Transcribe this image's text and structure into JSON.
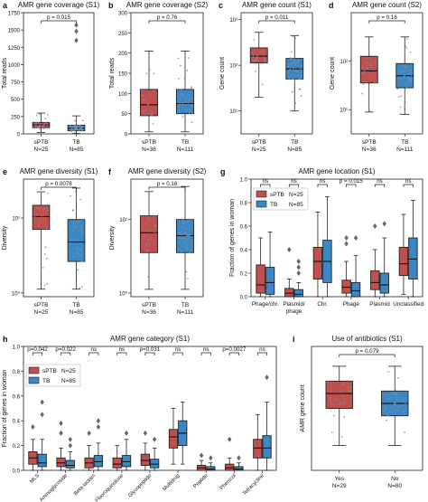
{
  "colors": {
    "sptb": "#c0504d",
    "tb": "#3b87c4",
    "box_edge": "#222222",
    "dot": "#7a8fa6",
    "median": "#111111"
  },
  "chart_data": [
    {
      "id": "a",
      "panel_letter": "a",
      "type": "box",
      "title": "AMR gene coverage (S1)",
      "ylabel": "Total reads",
      "scale": "linear",
      "ylim": [
        0,
        1750
      ],
      "yticks": [
        0,
        250,
        500,
        750,
        1000,
        1250,
        1500,
        1750
      ],
      "ytick_labels": [
        "0",
        "250",
        "500",
        "750",
        "1000",
        "1250",
        "1500",
        "1750"
      ],
      "categories": [
        "sPTB",
        "TB"
      ],
      "ns": [
        "N=25",
        "N=85"
      ],
      "boxes": [
        {
          "q1": 90,
          "median": 130,
          "q3": 165,
          "lo": 20,
          "hi": 300,
          "outliers": [],
          "color": "sptb"
        },
        {
          "q1": 45,
          "median": 80,
          "q3": 125,
          "lo": 5,
          "hi": 260,
          "outliers": [
            1350,
            1480,
            1570
          ],
          "color": "tb"
        }
      ],
      "comparisons": [
        {
          "label": "p = 0.015",
          "a": 0,
          "b": 1
        }
      ]
    },
    {
      "id": "b",
      "panel_letter": "b",
      "type": "box",
      "title": "AMR gene coverage (S2)",
      "ylabel": "Total reads",
      "scale": "linear",
      "ylim": [
        0,
        300
      ],
      "yticks": [
        0,
        50,
        100,
        150,
        200,
        250,
        300
      ],
      "ytick_labels": [
        "0",
        "50",
        "100",
        "150",
        "200",
        "250",
        "300"
      ],
      "categories": [
        "sPTB",
        "TB"
      ],
      "ns": [
        "N=36",
        "N=111"
      ],
      "boxes": [
        {
          "q1": 45,
          "median": 72,
          "q3": 110,
          "lo": 5,
          "hi": 205,
          "outliers": [],
          "color": "sptb"
        },
        {
          "q1": 50,
          "median": 75,
          "q3": 110,
          "lo": 5,
          "hi": 205,
          "outliers": [],
          "color": "tb"
        }
      ],
      "comparisons": [
        {
          "label": "p = 0.76",
          "a": 0,
          "b": 1
        }
      ]
    },
    {
      "id": "c",
      "panel_letter": "c",
      "type": "box",
      "title": "AMR gene count (S1)",
      "ylabel": "Gene count",
      "scale": "log",
      "ylim": [
        0.5,
        3.15
      ],
      "yticks": [
        1,
        2,
        3
      ],
      "ytick_labels": [
        "10¹",
        "10²",
        "10³"
      ],
      "categories": [
        "sPTB",
        "TB"
      ],
      "ns": [
        "N=25",
        "N=85"
      ],
      "boxes": [
        {
          "q1": 2.05,
          "median": 2.2,
          "q3": 2.38,
          "lo": 1.3,
          "hi": 2.72,
          "outliers": [],
          "color": "sptb"
        },
        {
          "q1": 1.7,
          "median": 1.92,
          "q3": 2.15,
          "lo": 1.0,
          "hi": 2.65,
          "outliers": [],
          "color": "tb"
        }
      ],
      "comparisons": [
        {
          "label": "p = 0.011",
          "a": 0,
          "b": 1
        }
      ]
    },
    {
      "id": "d",
      "panel_letter": "d",
      "type": "box",
      "title": "AMR gene count (S2)",
      "ylabel": "Gene count",
      "scale": "log",
      "ylim": [
        0.5,
        3.0
      ],
      "yticks": [
        1,
        2
      ],
      "ytick_labels": [
        "10¹",
        "10²"
      ],
      "categories": [
        "sPTB",
        "TB"
      ],
      "ns": [
        "N=36",
        "N=111"
      ],
      "boxes": [
        {
          "q1": 1.55,
          "median": 1.8,
          "q3": 2.1,
          "lo": 0.95,
          "hi": 2.5,
          "outliers": [],
          "color": "sptb"
        },
        {
          "q1": 1.45,
          "median": 1.7,
          "q3": 1.95,
          "lo": 0.9,
          "hi": 2.5,
          "outliers": [],
          "color": "tb"
        }
      ],
      "comparisons": [
        {
          "label": "p = 0.16",
          "a": 0,
          "b": 1
        }
      ]
    },
    {
      "id": "e",
      "panel_letter": "e",
      "type": "box",
      "title": "AMR gene diversity (S1)",
      "ylabel": "Diversity",
      "scale": "log",
      "ylim": [
        -0.05,
        1.52
      ],
      "yticks": [
        0,
        1
      ],
      "ytick_labels": [
        "10⁰",
        "10¹"
      ],
      "categories": [
        "sPTB",
        "TB"
      ],
      "ns": [
        "N=25",
        "N=85"
      ],
      "boxes": [
        {
          "q1": 0.85,
          "median": 1.02,
          "q3": 1.17,
          "lo": 0.05,
          "hi": 1.35,
          "outliers": [],
          "color": "sptb"
        },
        {
          "q1": 0.42,
          "median": 0.68,
          "q3": 0.98,
          "lo": 0.05,
          "hi": 1.4,
          "outliers": [],
          "color": "tb"
        }
      ],
      "comparisons": [
        {
          "label": "p = 0.0078",
          "a": 0,
          "b": 1
        }
      ]
    },
    {
      "id": "f",
      "panel_letter": "f",
      "type": "box",
      "title": "AMR gene diversity (S2)",
      "ylabel": "Diversity",
      "scale": "log",
      "ylim": [
        -0.05,
        1.55
      ],
      "yticks": [
        0,
        1
      ],
      "ytick_labels": [
        "10⁰",
        "10¹"
      ],
      "categories": [
        "sPTB",
        "TB"
      ],
      "ns": [
        "N=36",
        "N=111"
      ],
      "boxes": [
        {
          "q1": 0.55,
          "median": 0.82,
          "q3": 1.05,
          "lo": 0.05,
          "hi": 1.38,
          "outliers": [],
          "color": "sptb"
        },
        {
          "q1": 0.55,
          "median": 0.78,
          "q3": 1.0,
          "lo": 0.05,
          "hi": 1.45,
          "outliers": [],
          "color": "tb"
        }
      ],
      "comparisons": [
        {
          "label": "p = 0.16",
          "a": 0,
          "b": 1
        }
      ]
    },
    {
      "id": "g",
      "panel_letter": "g",
      "type": "grouped-box",
      "title": "AMR gene location (S1)",
      "ylabel": "Fraction of genes in woman",
      "scale": "linear",
      "ylim": [
        0,
        1.0
      ],
      "yticks": [
        0,
        0.2,
        0.4,
        0.6,
        0.8,
        1.0
      ],
      "ytick_labels": [
        "0.0",
        "0.2",
        "0.4",
        "0.6",
        "0.8",
        "1.0"
      ],
      "categories": [
        "Phage/chr.",
        "Plasmid/phage",
        "Chr.",
        "Phage",
        "Plasmid",
        "Unclassified"
      ],
      "legend": {
        "position": "upper-left",
        "items": [
          {
            "label": "sPTB",
            "n": "N=25",
            "color": "sptb"
          },
          {
            "label": "TB",
            "n": "N=85",
            "color": "tb"
          }
        ]
      },
      "pvalues": [
        "ns",
        "ns",
        "ns",
        "p = 0.015",
        "ns",
        "ns"
      ],
      "series": [
        {
          "name": "sPTB",
          "color": "sptb",
          "boxes": [
            {
              "q1": 0.03,
              "median": 0.1,
              "q3": 0.27,
              "lo": 0,
              "hi": 0.5,
              "outliers": [
                0.9
              ]
            },
            {
              "q1": 0.0,
              "median": 0.03,
              "q3": 0.07,
              "lo": 0,
              "hi": 0.15,
              "outliers": [
                0.4
              ]
            },
            {
              "q1": 0.15,
              "median": 0.3,
              "q3": 0.42,
              "lo": 0,
              "hi": 0.72,
              "outliers": []
            },
            {
              "q1": 0.03,
              "median": 0.08,
              "q3": 0.14,
              "lo": 0,
              "hi": 0.3,
              "outliers": [
                0.45,
                0.5
              ]
            },
            {
              "q1": 0.06,
              "median": 0.12,
              "q3": 0.22,
              "lo": 0,
              "hi": 0.4,
              "outliers": [
                0.6
              ]
            },
            {
              "q1": 0.18,
              "median": 0.28,
              "q3": 0.42,
              "lo": 0.02,
              "hi": 0.7,
              "outliers": []
            }
          ]
        },
        {
          "name": "TB",
          "color": "tb",
          "boxes": [
            {
              "q1": 0.02,
              "median": 0.12,
              "q3": 0.25,
              "lo": 0,
              "hi": 0.55,
              "outliers": []
            },
            {
              "q1": 0.0,
              "median": 0.02,
              "q3": 0.06,
              "lo": 0,
              "hi": 0.12,
              "outliers": [
                0.2,
                0.25,
                0.3
              ]
            },
            {
              "q1": 0.12,
              "median": 0.3,
              "q3": 0.48,
              "lo": 0,
              "hi": 0.85,
              "outliers": []
            },
            {
              "q1": 0.0,
              "median": 0.05,
              "q3": 0.12,
              "lo": 0,
              "hi": 0.35,
              "outliers": [
                0.5
              ]
            },
            {
              "q1": 0.03,
              "median": 0.1,
              "q3": 0.2,
              "lo": 0,
              "hi": 0.5,
              "outliers": [
                0.62
              ]
            },
            {
              "q1": 0.15,
              "median": 0.32,
              "q3": 0.5,
              "lo": 0,
              "hi": 0.82,
              "outliers": []
            }
          ]
        }
      ]
    },
    {
      "id": "h",
      "panel_letter": "h",
      "type": "grouped-box",
      "title": "AMR gene category (S1)",
      "ylabel": "Fraction of genes in woman",
      "scale": "linear",
      "ylim": [
        0,
        1.0
      ],
      "yticks": [
        0,
        0.2,
        0.4,
        0.6,
        0.8,
        1.0
      ],
      "ytick_labels": [
        "0.0",
        "0.2",
        "0.4",
        "0.6",
        "0.8",
        "1.0"
      ],
      "categories": [
        "MLS",
        "Aminoglycoside",
        "Beta-lactam",
        "Fluoroquinolone",
        "Glycopeptide",
        "Multidrug",
        "Peptide",
        "Phenicol",
        "Tetracycline"
      ],
      "legend": {
        "position": "upper-left",
        "items": [
          {
            "label": "sPTB",
            "n": "N=25",
            "color": "sptb"
          },
          {
            "label": "TB",
            "n": "N=85",
            "color": "tb"
          }
        ]
      },
      "pvalues": [
        "p=0.042",
        "p=0.022",
        "ns",
        "ns",
        "p=0.031",
        "ns",
        "ns",
        "p=0.0027",
        "ns"
      ],
      "series": [
        {
          "name": "sPTB",
          "color": "sptb",
          "boxes": [
            {
              "q1": 0.05,
              "median": 0.1,
              "q3": 0.15,
              "lo": 0,
              "hi": 0.25,
              "outliers": [
                0.35
              ]
            },
            {
              "q1": 0.03,
              "median": 0.06,
              "q3": 0.1,
              "lo": 0,
              "hi": 0.18,
              "outliers": [
                0.3,
                0.38
              ]
            },
            {
              "q1": 0.02,
              "median": 0.06,
              "q3": 0.1,
              "lo": 0,
              "hi": 0.2,
              "outliers": [
                0.3
              ]
            },
            {
              "q1": 0.02,
              "median": 0.05,
              "q3": 0.1,
              "lo": 0,
              "hi": 0.2,
              "outliers": []
            },
            {
              "q1": 0.04,
              "median": 0.08,
              "q3": 0.13,
              "lo": 0,
              "hi": 0.22,
              "outliers": [
                0.3
              ]
            },
            {
              "q1": 0.18,
              "median": 0.27,
              "q3": 0.33,
              "lo": 0.05,
              "hi": 0.5,
              "outliers": []
            },
            {
              "q1": 0.0,
              "median": 0.02,
              "q3": 0.04,
              "lo": 0,
              "hi": 0.08,
              "outliers": [
                0.12
              ]
            },
            {
              "q1": 0.0,
              "median": 0.02,
              "q3": 0.05,
              "lo": 0,
              "hi": 0.1,
              "outliers": [
                0.25
              ]
            },
            {
              "q1": 0.1,
              "median": 0.18,
              "q3": 0.25,
              "lo": 0,
              "hi": 0.45,
              "outliers": []
            }
          ]
        },
        {
          "name": "TB",
          "color": "tb",
          "boxes": [
            {
              "q1": 0.03,
              "median": 0.06,
              "q3": 0.13,
              "lo": 0,
              "hi": 0.25,
              "outliers": [
                0.45,
                0.55
              ]
            },
            {
              "q1": 0.02,
              "median": 0.04,
              "q3": 0.08,
              "lo": 0,
              "hi": 0.15,
              "outliers": [
                0.2,
                0.25
              ]
            },
            {
              "q1": 0.03,
              "median": 0.07,
              "q3": 0.12,
              "lo": 0,
              "hi": 0.22,
              "outliers": [
                0.35,
                0.4
              ]
            },
            {
              "q1": 0.03,
              "median": 0.07,
              "q3": 0.12,
              "lo": 0,
              "hi": 0.25,
              "outliers": [
                0.3
              ]
            },
            {
              "q1": 0.02,
              "median": 0.05,
              "q3": 0.09,
              "lo": 0,
              "hi": 0.18,
              "outliers": [
                0.25
              ]
            },
            {
              "q1": 0.2,
              "median": 0.3,
              "q3": 0.4,
              "lo": 0.05,
              "hi": 0.55,
              "outliers": []
            },
            {
              "q1": 0.0,
              "median": 0.01,
              "q3": 0.03,
              "lo": 0,
              "hi": 0.06,
              "outliers": [
                0.1
              ]
            },
            {
              "q1": 0.0,
              "median": 0.01,
              "q3": 0.03,
              "lo": 0,
              "hi": 0.06,
              "outliers": [
                0.1
              ]
            },
            {
              "q1": 0.1,
              "median": 0.18,
              "q3": 0.28,
              "lo": 0,
              "hi": 0.55,
              "outliers": [
                0.75
              ]
            }
          ]
        }
      ]
    },
    {
      "id": "i",
      "panel_letter": "i",
      "type": "box",
      "title": "Use of antibiotics (S1)",
      "ylabel": "AMR gene count",
      "scale": "log",
      "ylim": [
        0.5,
        3.0
      ],
      "yticks": [],
      "ytick_labels": [],
      "categories": [
        "Yes",
        "No"
      ],
      "ns": [
        "N=29",
        "N=80"
      ],
      "boxes": [
        {
          "q1": 1.75,
          "median": 2.05,
          "q3": 2.3,
          "lo": 1.0,
          "hi": 2.6,
          "outliers": [],
          "color": "sptb"
        },
        {
          "q1": 1.6,
          "median": 1.85,
          "q3": 2.1,
          "lo": 1.0,
          "hi": 2.6,
          "outliers": [],
          "color": "tb"
        }
      ],
      "comparisons": [
        {
          "label": "p = 0.079",
          "a": 0,
          "b": 1
        }
      ]
    }
  ]
}
